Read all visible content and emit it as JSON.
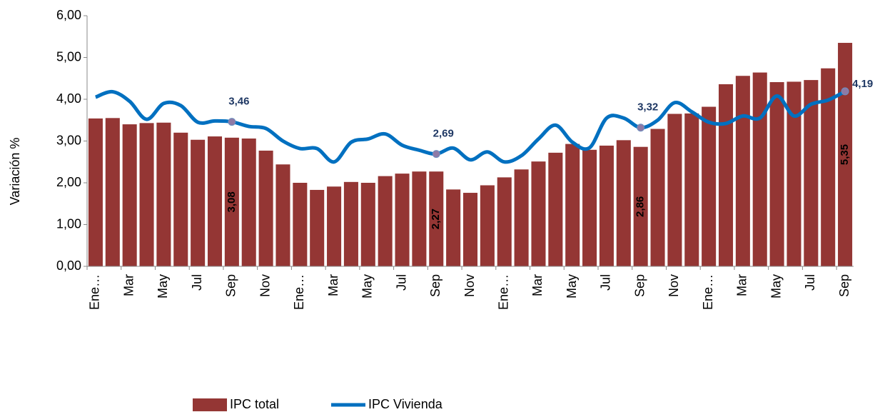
{
  "chart_data": {
    "type": "bar-line",
    "y_axis_label": "Variación %",
    "categories": [
      "Ene…",
      null,
      "Mar",
      null,
      "May",
      null,
      "Jul",
      null,
      "Sep",
      null,
      "Nov",
      null,
      "Ene…",
      null,
      "Mar",
      null,
      "May",
      null,
      "Jul",
      null,
      "Sep",
      null,
      "Nov",
      null,
      "Ene…",
      null,
      "Mar",
      null,
      "May",
      null,
      "Jul",
      null,
      "Sep",
      null,
      "Nov",
      null,
      "Ene…",
      null,
      "Mar",
      null,
      "May",
      null,
      "Jul",
      null,
      "Sep"
    ],
    "series": [
      {
        "name": "IPC total",
        "type": "bar",
        "color": "#943634",
        "values": [
          3.54,
          3.55,
          3.4,
          3.43,
          3.44,
          3.2,
          3.03,
          3.11,
          3.08,
          3.06,
          2.77,
          2.44,
          2.0,
          1.83,
          1.91,
          2.02,
          2.0,
          2.16,
          2.22,
          2.27,
          2.27,
          1.84,
          1.76,
          1.94,
          2.13,
          2.32,
          2.51,
          2.72,
          2.93,
          2.79,
          2.89,
          3.02,
          2.86,
          3.29,
          3.65,
          3.66,
          3.82,
          4.36,
          4.56,
          4.64,
          4.41,
          4.42,
          4.46,
          4.74,
          5.35
        ],
        "value_labels": [
          null,
          null,
          null,
          null,
          null,
          null,
          null,
          null,
          "3,08",
          null,
          null,
          null,
          null,
          null,
          null,
          null,
          null,
          null,
          null,
          null,
          "2,27",
          null,
          null,
          null,
          null,
          null,
          null,
          null,
          null,
          null,
          null,
          null,
          "2,86",
          null,
          null,
          null,
          null,
          null,
          null,
          null,
          null,
          null,
          null,
          null,
          "5,35"
        ]
      },
      {
        "name": "IPC Vivienda",
        "type": "line",
        "color": "#0070c0",
        "values": [
          4.05,
          4.18,
          3.95,
          3.52,
          3.9,
          3.85,
          3.45,
          3.48,
          3.46,
          3.35,
          3.3,
          3.0,
          2.82,
          2.82,
          2.5,
          2.97,
          3.05,
          3.17,
          2.9,
          2.78,
          2.69,
          2.83,
          2.55,
          2.74,
          2.5,
          2.65,
          3.05,
          3.38,
          2.97,
          2.84,
          3.55,
          3.55,
          3.32,
          3.5,
          3.92,
          3.7,
          3.45,
          3.42,
          3.6,
          3.55,
          4.08,
          3.6,
          3.88,
          3.98,
          4.19
        ],
        "value_labels": [
          null,
          null,
          null,
          null,
          null,
          null,
          null,
          null,
          "3,46",
          null,
          null,
          null,
          null,
          null,
          null,
          null,
          null,
          null,
          null,
          null,
          "2,69",
          null,
          null,
          null,
          null,
          null,
          null,
          null,
          null,
          null,
          null,
          null,
          "3,32",
          null,
          null,
          null,
          null,
          null,
          null,
          null,
          null,
          null,
          null,
          null,
          "4,19"
        ]
      }
    ],
    "ylim": [
      0,
      6
    ],
    "yticks": [
      {
        "value": 0,
        "label": "0,00"
      },
      {
        "value": 1,
        "label": "1,00"
      },
      {
        "value": 2,
        "label": "2,00"
      },
      {
        "value": 3,
        "label": "3,00"
      },
      {
        "value": 4,
        "label": "4,00"
      },
      {
        "value": 5,
        "label": "5,00"
      },
      {
        "value": 6,
        "label": "6,00"
      }
    ],
    "grid": false,
    "legend": "bottom"
  }
}
